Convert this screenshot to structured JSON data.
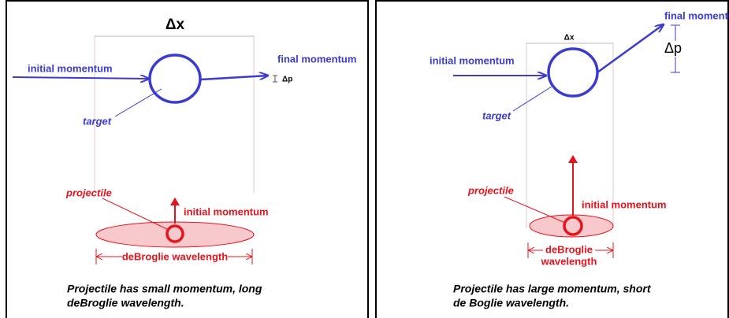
{
  "panels": [
    {
      "delta_x": "Δx",
      "initial_momentum": "initial momentum",
      "final_momentum": "final momentum",
      "delta_p": "Δp",
      "target": "target",
      "projectile": "projectile",
      "projectile_momentum": "initial momentum",
      "wavelength": [
        "deBroglie wavelength"
      ],
      "caption": [
        "Projectile has small momentum, long",
        "deBroglie wavelength."
      ]
    },
    {
      "delta_x": "Δx",
      "initial_momentum": "initial momentum",
      "final_momentum": "final momentum",
      "delta_p": "Δp",
      "target": "target",
      "projectile": "projectile",
      "projectile_momentum": "initial momentum",
      "wavelength": [
        "deBroglie",
        "wavelength"
      ],
      "caption": [
        "Projectile has large momentum, short",
        "de Boglie wavelength."
      ]
    }
  ]
}
